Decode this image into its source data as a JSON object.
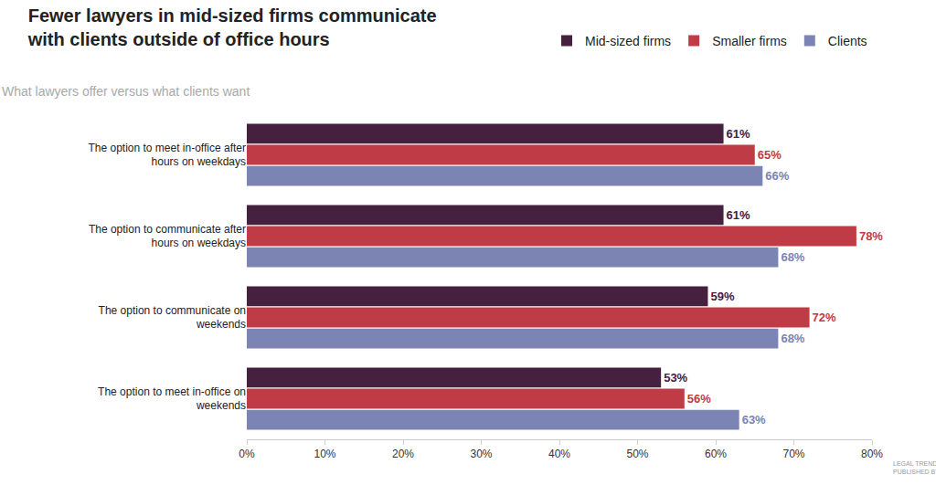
{
  "chart_data": {
    "type": "bar",
    "orientation": "horizontal",
    "title": "Fewer lawyers in mid-sized firms communicate with clients outside of office hours",
    "subtitle": "What lawyers offer versus what clients want",
    "categories": [
      "The option to meet in-office after hours on weekdays",
      "The option to communicate after hours on weekdays",
      "The option to communicate on weekends",
      "The option to meet in-office on weekends"
    ],
    "series": [
      {
        "name": "Mid-sized firms",
        "color": "#45203f",
        "values": [
          61,
          61,
          59,
          53
        ],
        "value_labels": [
          "61%",
          "61%",
          "59%",
          "53%"
        ]
      },
      {
        "name": "Smaller firms",
        "color": "#bf3b45",
        "values": [
          65,
          78,
          72,
          56
        ],
        "value_labels": [
          "65%",
          "78%",
          "72%",
          "56%"
        ]
      },
      {
        "name": "Clients",
        "color": "#7b84b2",
        "values": [
          66,
          68,
          68,
          63
        ],
        "value_labels": [
          "66%",
          "68%",
          "68%",
          "63%"
        ]
      }
    ],
    "xlim": [
      0,
      80
    ],
    "xticks": [
      {
        "value": 0,
        "label": "0%"
      },
      {
        "value": 10,
        "label": "10%"
      },
      {
        "value": 20,
        "label": "20%"
      },
      {
        "value": 30,
        "label": "30%"
      },
      {
        "value": 40,
        "label": "40%"
      },
      {
        "value": 50,
        "label": "50%"
      },
      {
        "value": 60,
        "label": "60%"
      },
      {
        "value": 70,
        "label": "70%"
      },
      {
        "value": 80,
        "label": "80%"
      }
    ],
    "data_labels": true,
    "grid": false,
    "legend": "top-right",
    "annotations": [
      "LEGAL TRENDS REPORT",
      "PUBLISHED BY CLIO"
    ]
  }
}
